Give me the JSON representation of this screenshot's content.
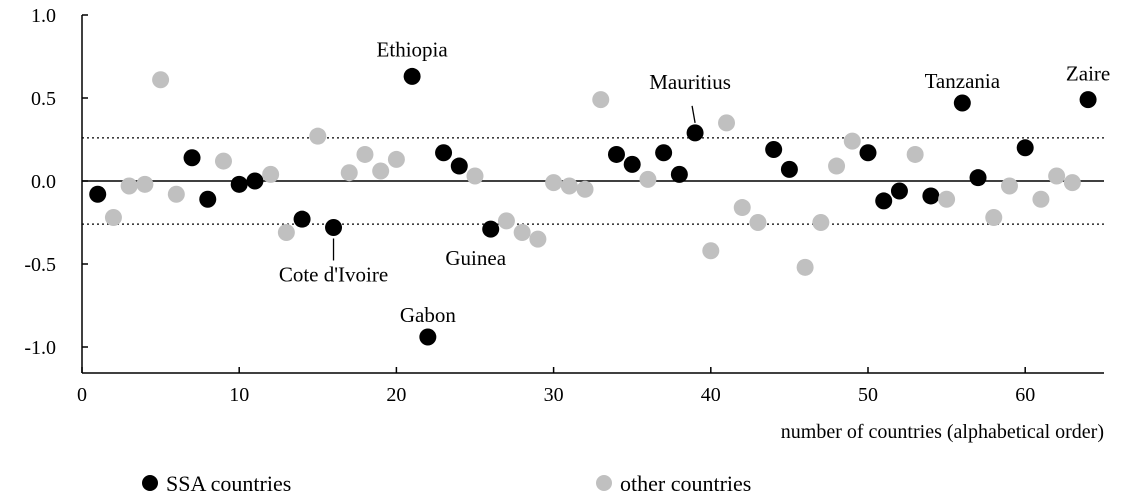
{
  "chart_data": {
    "type": "scatter",
    "title": "",
    "xlabel": "number of countries (alphabetical order)",
    "ylabel": "",
    "xlim": [
      0,
      65
    ],
    "ylim": [
      -1.0,
      1.0
    ],
    "xticks": [
      0,
      10,
      20,
      30,
      40,
      50,
      60
    ],
    "xtick_labels": [
      "0",
      "10",
      "20",
      "30",
      "40",
      "50",
      "60"
    ],
    "yticks": [
      1.0,
      0.5,
      0.0,
      -0.5,
      -1.0
    ],
    "ytick_labels": [
      "1.0",
      "0.5",
      "0.0",
      "-0.5",
      "-1.0"
    ],
    "reference_lines": [
      {
        "y": 0.0,
        "style": "solid"
      },
      {
        "y": 0.26,
        "style": "dotted"
      },
      {
        "y": -0.26,
        "style": "dotted"
      }
    ],
    "legend_placement": "bottom",
    "series": [
      {
        "name": "SSA countries",
        "color": "#000000",
        "points": [
          {
            "x": 1,
            "y": -0.08
          },
          {
            "x": 7,
            "y": 0.14
          },
          {
            "x": 8,
            "y": -0.11
          },
          {
            "x": 10,
            "y": -0.02
          },
          {
            "x": 11,
            "y": 0.0
          },
          {
            "x": 14,
            "y": -0.23
          },
          {
            "x": 16,
            "y": -0.28
          },
          {
            "x": 21,
            "y": 0.63
          },
          {
            "x": 22,
            "y": -0.94
          },
          {
            "x": 23,
            "y": 0.17
          },
          {
            "x": 24,
            "y": 0.09
          },
          {
            "x": 26,
            "y": -0.29
          },
          {
            "x": 34,
            "y": 0.16
          },
          {
            "x": 35,
            "y": 0.1
          },
          {
            "x": 37,
            "y": 0.17
          },
          {
            "x": 38,
            "y": 0.04
          },
          {
            "x": 39,
            "y": 0.29
          },
          {
            "x": 44,
            "y": 0.19
          },
          {
            "x": 45,
            "y": 0.07
          },
          {
            "x": 50,
            "y": 0.17
          },
          {
            "x": 51,
            "y": -0.12
          },
          {
            "x": 52,
            "y": -0.06
          },
          {
            "x": 54,
            "y": -0.09
          },
          {
            "x": 56,
            "y": 0.47
          },
          {
            "x": 57,
            "y": 0.02
          },
          {
            "x": 60,
            "y": 0.2
          },
          {
            "x": 64,
            "y": 0.49
          }
        ]
      },
      {
        "name": "other countries",
        "color": "#c0c0c0",
        "points": [
          {
            "x": 2,
            "y": -0.22
          },
          {
            "x": 3,
            "y": -0.03
          },
          {
            "x": 4,
            "y": -0.02
          },
          {
            "x": 5,
            "y": 0.61
          },
          {
            "x": 6,
            "y": -0.08
          },
          {
            "x": 9,
            "y": 0.12
          },
          {
            "x": 12,
            "y": 0.04
          },
          {
            "x": 13,
            "y": -0.31
          },
          {
            "x": 15,
            "y": 0.27
          },
          {
            "x": 17,
            "y": 0.05
          },
          {
            "x": 18,
            "y": 0.16
          },
          {
            "x": 19,
            "y": 0.06
          },
          {
            "x": 20,
            "y": 0.13
          },
          {
            "x": 25,
            "y": 0.03
          },
          {
            "x": 27,
            "y": -0.24
          },
          {
            "x": 28,
            "y": -0.31
          },
          {
            "x": 29,
            "y": -0.35
          },
          {
            "x": 30,
            "y": -0.01
          },
          {
            "x": 31,
            "y": -0.03
          },
          {
            "x": 32,
            "y": -0.05
          },
          {
            "x": 33,
            "y": 0.49
          },
          {
            "x": 36,
            "y": 0.01
          },
          {
            "x": 40,
            "y": -0.42
          },
          {
            "x": 41,
            "y": 0.35
          },
          {
            "x": 42,
            "y": -0.16
          },
          {
            "x": 43,
            "y": -0.25
          },
          {
            "x": 46,
            "y": -0.52
          },
          {
            "x": 47,
            "y": -0.25
          },
          {
            "x": 48,
            "y": 0.09
          },
          {
            "x": 49,
            "y": 0.24
          },
          {
            "x": 53,
            "y": 0.16
          },
          {
            "x": 55,
            "y": -0.11
          },
          {
            "x": 58,
            "y": -0.22
          },
          {
            "x": 59,
            "y": -0.03
          },
          {
            "x": 61,
            "y": -0.11
          },
          {
            "x": 62,
            "y": 0.03
          },
          {
            "x": 63,
            "y": -0.01
          }
        ]
      }
    ],
    "annotations": [
      {
        "name": "ethiopia",
        "text": "Ethiopia",
        "x": 21,
        "y": 0.63,
        "label_anchor": "above"
      },
      {
        "name": "gabon",
        "text": "Gabon",
        "x": 22,
        "y": -0.94,
        "label_anchor": "above"
      },
      {
        "name": "guinea",
        "text": "Guinea",
        "x": 26,
        "y": -0.29,
        "label_anchor": "below-left"
      },
      {
        "name": "cote-divoire",
        "text": "Cote d'Ivoire",
        "x": 16,
        "y": -0.28,
        "label_anchor": "below-leader"
      },
      {
        "name": "mauritius",
        "text": "Mauritius",
        "x": 39,
        "y": 0.29,
        "label_anchor": "above-leader"
      },
      {
        "name": "tanzania",
        "text": "Tanzania",
        "x": 56,
        "y": 0.47,
        "label_anchor": "above"
      },
      {
        "name": "zaire",
        "text": "Zaire",
        "x": 64,
        "y": 0.49,
        "label_anchor": "above"
      }
    ]
  }
}
